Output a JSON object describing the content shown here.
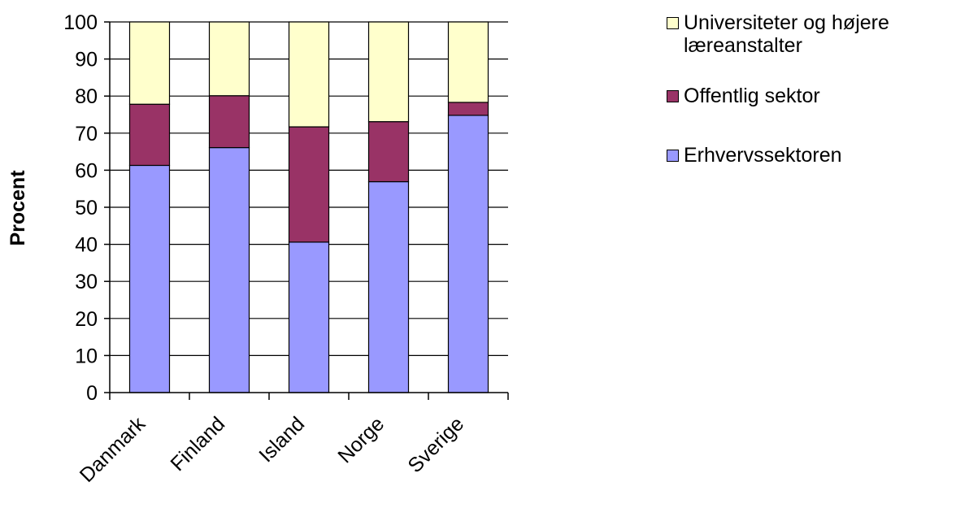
{
  "chart_data": {
    "type": "bar",
    "stacked": true,
    "categories": [
      "Danmark",
      "Finland",
      "Island",
      "Norge",
      "Sverige"
    ],
    "series": [
      {
        "name": "Erhvervssektoren",
        "color": "#9999ff",
        "values": [
          61.3,
          66.1,
          40.6,
          56.9,
          74.8
        ]
      },
      {
        "name": "Offentlig sektor",
        "color": "#993366",
        "values": [
          16.5,
          14.0,
          31.1,
          16.2,
          3.5
        ]
      },
      {
        "name": "Universiteter og højere læreanstalter",
        "color": "#ffffcc",
        "values": [
          22.2,
          19.9,
          28.3,
          26.9,
          21.7
        ]
      }
    ],
    "ylabel": "Procent",
    "xlabel": "",
    "ylim": [
      0,
      100
    ],
    "yticks": [
      0,
      10,
      20,
      30,
      40,
      50,
      60,
      70,
      80,
      90,
      100
    ],
    "grid": true,
    "legend_position": "right"
  },
  "legend": {
    "items": [
      {
        "label_line1": "Universiteter og højere",
        "label_line2": "læreanstalter",
        "color": "#ffffcc"
      },
      {
        "label_line1": "Offentlig sektor",
        "label_line2": "",
        "color": "#993366"
      },
      {
        "label_line1": "Erhvervssektoren",
        "label_line2": "",
        "color": "#9999ff"
      }
    ]
  }
}
